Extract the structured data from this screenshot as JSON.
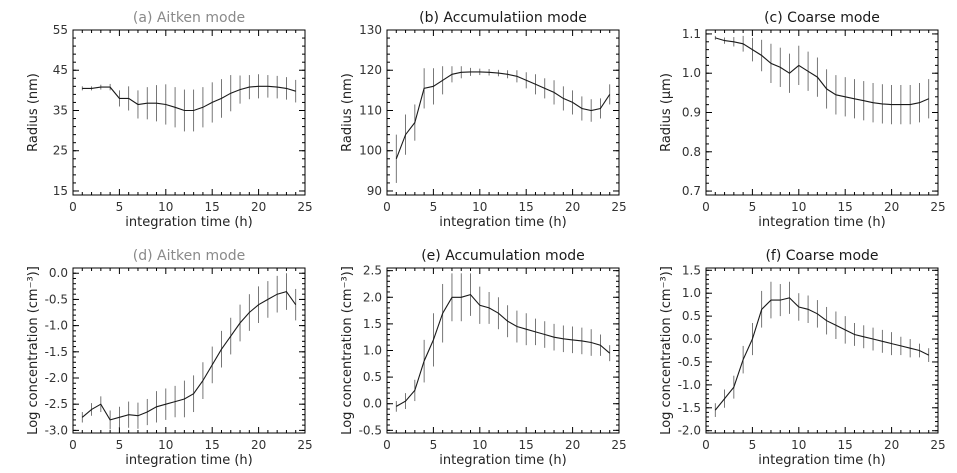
{
  "colors": {
    "line": "#1a1a1a",
    "errorbar": "#555555",
    "axis": "#000000",
    "faded_title": "#8a8a8a"
  },
  "chart_data": [
    {
      "id": "a",
      "type": "line",
      "title": "(a) Aitken mode",
      "title_color": "#8a8a8a",
      "xlabel": "integration time (h)",
      "ylabel": "Radius (nm)",
      "xlim": [
        0,
        25
      ],
      "ylim": [
        14,
        55
      ],
      "xticks": [
        0,
        5,
        10,
        15,
        20,
        25
      ],
      "yticks": [
        15,
        25,
        35,
        45,
        55
      ],
      "ytick_labels": [
        "15",
        "25",
        "35",
        "45",
        "55"
      ],
      "x": [
        1,
        2,
        3,
        4,
        5,
        6,
        7,
        8,
        9,
        10,
        11,
        12,
        13,
        14,
        15,
        16,
        17,
        18,
        19,
        20,
        21,
        22,
        23,
        24
      ],
      "y": [
        40.5,
        40.5,
        40.8,
        40.8,
        38,
        38,
        36.5,
        36.8,
        36.8,
        36.5,
        35.8,
        35,
        35,
        35.8,
        37,
        38,
        39.3,
        40.2,
        40.8,
        41,
        41,
        40.8,
        40.5,
        39.8
      ],
      "err": [
        0.5,
        0.5,
        0.6,
        0.8,
        2,
        3,
        3.5,
        4,
        4.5,
        5,
        5,
        5.2,
        5.2,
        5,
        5,
        4.8,
        4.5,
        3.5,
        3,
        3,
        2.8,
        2.8,
        2.8,
        2.8
      ]
    },
    {
      "id": "b",
      "type": "line",
      "title": "(b) Accumulatiion mode",
      "title_color": "#1a1a1a",
      "xlabel": "integration time (h)",
      "ylabel": "Radius (nm)",
      "xlim": [
        0,
        25
      ],
      "ylim": [
        89,
        130
      ],
      "xticks": [
        0,
        5,
        10,
        15,
        20,
        25
      ],
      "yticks": [
        90,
        100,
        110,
        120,
        130
      ],
      "ytick_labels": [
        "90",
        "100",
        "110",
        "120",
        "130"
      ],
      "x": [
        1,
        2,
        3,
        4,
        5,
        6,
        7,
        8,
        9,
        10,
        11,
        12,
        13,
        14,
        15,
        16,
        17,
        18,
        19,
        20,
        21,
        22,
        23,
        24
      ],
      "y": [
        98,
        104,
        107,
        115.5,
        116,
        117.5,
        119,
        119.5,
        119.6,
        119.6,
        119.5,
        119.3,
        119,
        118.5,
        117.5,
        116.5,
        115.5,
        114.5,
        113,
        112,
        110.5,
        110,
        110.5,
        114
      ],
      "err": [
        6,
        5,
        4.5,
        5,
        4.5,
        3.5,
        2,
        1.5,
        1,
        0.8,
        0.8,
        0.8,
        1,
        1.5,
        2,
        2.5,
        2.5,
        3,
        3,
        3,
        3,
        2.8,
        2.5,
        2.5
      ]
    },
    {
      "id": "c",
      "type": "line",
      "title": "(c) Coarse mode",
      "title_color": "#1a1a1a",
      "xlabel": "integration time (h)",
      "ylabel": "Radius (µm)",
      "xlim": [
        0,
        25
      ],
      "ylim": [
        0.69,
        1.11
      ],
      "xticks": [
        0,
        5,
        10,
        15,
        20,
        25
      ],
      "yticks": [
        0.7,
        0.8,
        0.9,
        1.0,
        1.1
      ],
      "ytick_labels": [
        "0.7",
        "0.8",
        "0.9",
        "1.0",
        "1.1"
      ],
      "x": [
        1,
        2,
        3,
        4,
        5,
        6,
        7,
        8,
        9,
        10,
        11,
        12,
        13,
        14,
        15,
        16,
        17,
        18,
        19,
        20,
        21,
        22,
        23,
        24
      ],
      "y": [
        1.09,
        1.083,
        1.08,
        1.075,
        1.06,
        1.045,
        1.025,
        1.015,
        1.0,
        1.02,
        1.005,
        0.99,
        0.96,
        0.945,
        0.94,
        0.935,
        0.93,
        0.925,
        0.922,
        0.92,
        0.92,
        0.92,
        0.925,
        0.935
      ],
      "err": [
        0.005,
        0.008,
        0.012,
        0.02,
        0.03,
        0.04,
        0.05,
        0.05,
        0.05,
        0.05,
        0.05,
        0.05,
        0.05,
        0.05,
        0.05,
        0.05,
        0.05,
        0.05,
        0.05,
        0.05,
        0.05,
        0.05,
        0.05,
        0.05
      ]
    },
    {
      "id": "d",
      "type": "line",
      "title": "(d) Aitken mode",
      "title_color": "#8a8a8a",
      "xlabel": "integration time (h)",
      "ylabel": "Log concentration (cm⁻³)]",
      "xlim": [
        0,
        25
      ],
      "ylim": [
        -3.05,
        0.1
      ],
      "xticks": [
        0,
        5,
        10,
        15,
        20,
        25
      ],
      "yticks": [
        0.0,
        -0.5,
        -1.0,
        -1.5,
        -2.0,
        -2.5,
        -3.0
      ],
      "ytick_labels": [
        "0.0",
        "-0.5",
        "-1.0",
        "-1.5",
        "-2.0",
        "-2.5",
        "-3.0"
      ],
      "x": [
        1,
        2,
        3,
        4,
        5,
        6,
        7,
        8,
        9,
        10,
        11,
        12,
        13,
        14,
        15,
        16,
        17,
        18,
        19,
        20,
        21,
        22,
        23,
        24
      ],
      "y": [
        -2.75,
        -2.6,
        -2.5,
        -2.8,
        -2.75,
        -2.7,
        -2.72,
        -2.65,
        -2.55,
        -2.5,
        -2.45,
        -2.4,
        -2.3,
        -2.05,
        -1.75,
        -1.45,
        -1.2,
        -0.95,
        -0.75,
        -0.6,
        -0.5,
        -0.4,
        -0.35,
        -0.6
      ],
      "err": [
        0.1,
        0.12,
        0.15,
        0.18,
        0.2,
        0.25,
        0.25,
        0.25,
        0.3,
        0.3,
        0.3,
        0.35,
        0.35,
        0.35,
        0.35,
        0.35,
        0.35,
        0.35,
        0.35,
        0.35,
        0.35,
        0.35,
        0.35,
        0.3
      ]
    },
    {
      "id": "e",
      "type": "line",
      "title": "(e) Accumulation mode",
      "title_color": "#1a1a1a",
      "xlabel": "integration time (h)",
      "ylabel": "Log concentration (cm⁻³)]",
      "xlim": [
        0,
        25
      ],
      "ylim": [
        -0.55,
        2.55
      ],
      "xticks": [
        0,
        5,
        10,
        15,
        20,
        25
      ],
      "yticks": [
        2.5,
        2.0,
        1.5,
        1.0,
        0.5,
        0.0,
        -0.5
      ],
      "ytick_labels": [
        "2.5",
        "2.0",
        "1.5",
        "1.0",
        "0.5",
        "0.0",
        "-0.5"
      ],
      "x": [
        1,
        2,
        3,
        4,
        5,
        6,
        7,
        8,
        9,
        10,
        11,
        12,
        13,
        14,
        15,
        16,
        17,
        18,
        19,
        20,
        21,
        22,
        23,
        24
      ],
      "y": [
        -0.05,
        0.05,
        0.25,
        0.8,
        1.2,
        1.7,
        2.0,
        2.0,
        2.05,
        1.85,
        1.8,
        1.7,
        1.55,
        1.45,
        1.4,
        1.35,
        1.3,
        1.25,
        1.22,
        1.2,
        1.18,
        1.15,
        1.1,
        0.95
      ],
      "err": [
        0.1,
        0.15,
        0.2,
        0.4,
        0.5,
        0.55,
        0.45,
        0.45,
        0.4,
        0.35,
        0.3,
        0.3,
        0.3,
        0.3,
        0.3,
        0.25,
        0.25,
        0.25,
        0.25,
        0.25,
        0.25,
        0.25,
        0.2,
        0.15
      ]
    },
    {
      "id": "f",
      "type": "line",
      "title": "(f) Coarse mode",
      "title_color": "#1a1a1a",
      "xlabel": "integration time (h)",
      "ylabel": "Log concentration (cm⁻³)]",
      "xlim": [
        0,
        25
      ],
      "ylim": [
        -2.05,
        1.55
      ],
      "xticks": [
        0,
        5,
        10,
        15,
        20,
        25
      ],
      "yticks": [
        1.5,
        1.0,
        0.5,
        0.0,
        -0.5,
        -1.0,
        -1.5,
        -2.0
      ],
      "ytick_labels": [
        "1.5",
        "1.0",
        "0.5",
        "0.0",
        "-0.5",
        "-1.0",
        "-1.5",
        "-2.0"
      ],
      "x": [
        1,
        2,
        3,
        4,
        5,
        6,
        7,
        8,
        9,
        10,
        11,
        12,
        13,
        14,
        15,
        16,
        17,
        18,
        19,
        20,
        21,
        22,
        23,
        24
      ],
      "y": [
        -1.55,
        -1.3,
        -1.05,
        -0.45,
        0.0,
        0.65,
        0.85,
        0.85,
        0.9,
        0.7,
        0.65,
        0.55,
        0.4,
        0.3,
        0.2,
        0.1,
        0.05,
        0.0,
        -0.05,
        -0.1,
        -0.15,
        -0.2,
        -0.25,
        -0.35
      ],
      "err": [
        0.15,
        0.2,
        0.25,
        0.3,
        0.35,
        0.4,
        0.4,
        0.35,
        0.35,
        0.3,
        0.3,
        0.3,
        0.3,
        0.3,
        0.3,
        0.25,
        0.25,
        0.25,
        0.25,
        0.25,
        0.2,
        0.2,
        0.15,
        0.15
      ]
    }
  ]
}
